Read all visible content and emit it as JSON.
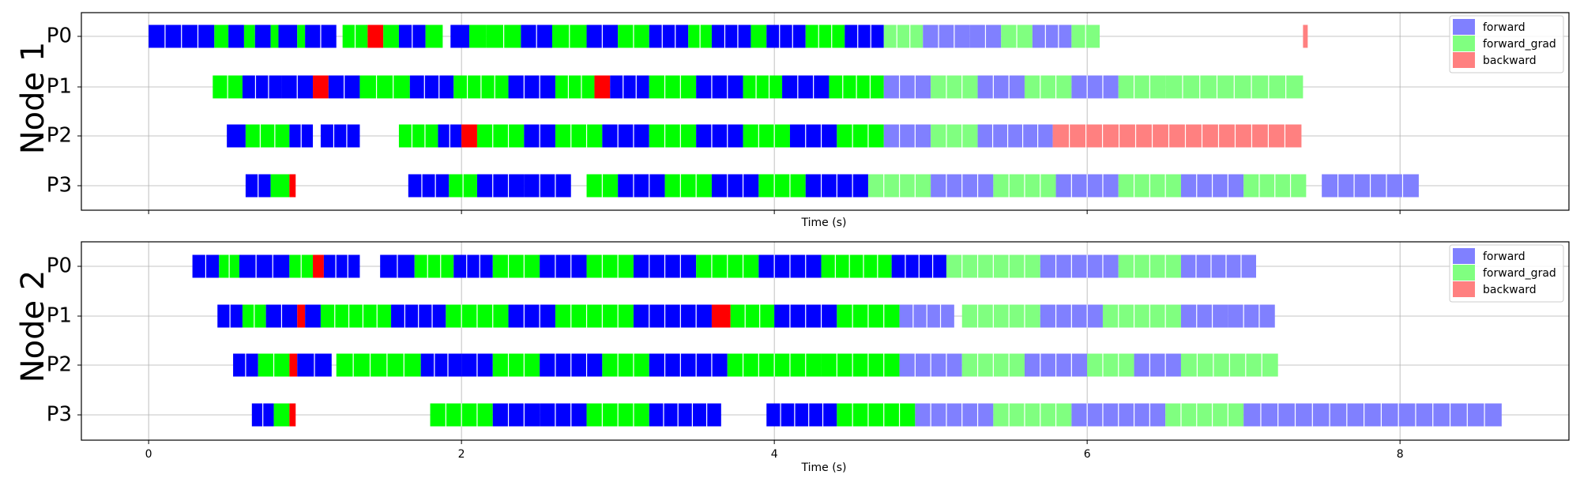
{
  "chart_data": [
    {
      "type": "bar",
      "subtype": "timeline",
      "ylabel": "Node 1",
      "xlabel": "Time (s)",
      "xlim": [
        -0.43,
        9.08
      ],
      "xticks": [
        0,
        2,
        4,
        6,
        8
      ],
      "xticks_labels_shown": false,
      "rows": [
        "P0",
        "P1",
        "P2",
        "P3"
      ],
      "grid": true,
      "legend_position": "top-right",
      "series": [
        {
          "name": "forward",
          "color": "#8080ff"
        },
        {
          "name": "forward_grad",
          "color": "#80ff80"
        },
        {
          "name": "backward",
          "color": "#ff8080"
        }
      ],
      "intervals": [
        [
          "P0",
          0,
          0.42,
          "forward"
        ],
        [
          "P0",
          0.42,
          0.51,
          "forward_grad"
        ],
        [
          "P0",
          0.51,
          0.61,
          "forward"
        ],
        [
          "P0",
          0.61,
          0.68,
          "forward_grad"
        ],
        [
          "P0",
          0.68,
          0.78,
          "forward"
        ],
        [
          "P0",
          0.78,
          0.83,
          "forward_grad"
        ],
        [
          "P0",
          0.83,
          0.95,
          "forward"
        ],
        [
          "P0",
          0.95,
          1.0,
          "forward_grad"
        ],
        [
          "P0",
          1.0,
          1.2,
          "forward"
        ],
        [
          "P0",
          1.24,
          1.4,
          "forward_grad"
        ],
        [
          "P0",
          1.4,
          1.5,
          "backward"
        ],
        [
          "P0",
          1.5,
          1.6,
          "forward_grad"
        ],
        [
          "P0",
          1.6,
          1.77,
          "forward"
        ],
        [
          "P0",
          1.77,
          1.88,
          "forward_grad"
        ],
        [
          "P0",
          1.93,
          2.05,
          "forward"
        ],
        [
          "P0",
          2.05,
          2.16,
          "forward_grad"
        ],
        [
          "P0",
          2.16,
          2.38,
          "forward_grad"
        ],
        [
          "P0",
          2.38,
          2.58,
          "forward"
        ],
        [
          "P0",
          2.58,
          2.8,
          "forward_grad"
        ],
        [
          "P0",
          2.8,
          3.0,
          "forward"
        ],
        [
          "P0",
          3.0,
          3.2,
          "forward_grad"
        ],
        [
          "P0",
          3.2,
          3.45,
          "forward"
        ],
        [
          "P0",
          3.45,
          3.6,
          "forward_grad"
        ],
        [
          "P0",
          3.6,
          3.85,
          "forward"
        ],
        [
          "P0",
          3.85,
          3.95,
          "forward_grad"
        ],
        [
          "P0",
          3.95,
          4.2,
          "forward"
        ],
        [
          "P0",
          4.2,
          4.45,
          "forward_grad"
        ],
        [
          "P0",
          4.45,
          4.7,
          "forward"
        ],
        [
          "P0",
          4.7,
          4.95,
          "forward_grad"
        ],
        [
          "P0",
          4.95,
          5.25,
          "forward"
        ],
        [
          "P0",
          5.25,
          5.45,
          "forward"
        ],
        [
          "P0",
          5.45,
          5.65,
          "forward_grad"
        ],
        [
          "P0",
          5.65,
          5.9,
          "forward"
        ],
        [
          "P0",
          5.9,
          6.08,
          "forward_grad"
        ],
        [
          "P0",
          7.38,
          7.41,
          "backward"
        ],
        [
          "P1",
          0.41,
          0.6,
          "forward_grad"
        ],
        [
          "P1",
          0.6,
          0.85,
          "forward"
        ],
        [
          "P1",
          0.85,
          1.05,
          "forward"
        ],
        [
          "P1",
          1.05,
          1.15,
          "backward"
        ],
        [
          "P1",
          1.15,
          1.35,
          "forward"
        ],
        [
          "P1",
          1.35,
          1.67,
          "forward_grad"
        ],
        [
          "P1",
          1.67,
          1.95,
          "forward"
        ],
        [
          "P1",
          1.95,
          2.3,
          "forward_grad"
        ],
        [
          "P1",
          2.3,
          2.6,
          "forward"
        ],
        [
          "P1",
          2.6,
          2.85,
          "forward_grad"
        ],
        [
          "P1",
          2.85,
          2.95,
          "backward"
        ],
        [
          "P1",
          2.95,
          3.2,
          "forward"
        ],
        [
          "P1",
          3.2,
          3.5,
          "forward_grad"
        ],
        [
          "P1",
          3.5,
          3.8,
          "forward"
        ],
        [
          "P1",
          3.8,
          4.05,
          "forward_grad"
        ],
        [
          "P1",
          4.05,
          4.35,
          "forward"
        ],
        [
          "P1",
          4.35,
          4.7,
          "forward_grad"
        ],
        [
          "P1",
          4.7,
          5.0,
          "forward"
        ],
        [
          "P1",
          5.0,
          5.3,
          "forward_grad"
        ],
        [
          "P1",
          5.3,
          5.6,
          "forward"
        ],
        [
          "P1",
          5.6,
          5.9,
          "forward_grad"
        ],
        [
          "P1",
          5.9,
          6.2,
          "forward"
        ],
        [
          "P1",
          6.2,
          6.5,
          "forward_grad"
        ],
        [
          "P1",
          6.5,
          7.38,
          "forward_grad"
        ],
        [
          "P2",
          0.5,
          0.62,
          "forward"
        ],
        [
          "P2",
          0.62,
          0.9,
          "forward_grad"
        ],
        [
          "P2",
          0.9,
          1.05,
          "forward"
        ],
        [
          "P2",
          1.1,
          1.35,
          "forward"
        ],
        [
          "P2",
          1.6,
          1.85,
          "forward_grad"
        ],
        [
          "P2",
          1.85,
          2.0,
          "forward"
        ],
        [
          "P2",
          2.0,
          2.1,
          "backward"
        ],
        [
          "P2",
          2.1,
          2.4,
          "forward_grad"
        ],
        [
          "P2",
          2.4,
          2.6,
          "forward"
        ],
        [
          "P2",
          2.6,
          2.9,
          "forward_grad"
        ],
        [
          "P2",
          2.9,
          3.2,
          "forward"
        ],
        [
          "P2",
          3.2,
          3.5,
          "forward_grad"
        ],
        [
          "P2",
          3.5,
          3.8,
          "forward"
        ],
        [
          "P2",
          3.8,
          4.1,
          "forward_grad"
        ],
        [
          "P2",
          4.1,
          4.4,
          "forward"
        ],
        [
          "P2",
          4.4,
          4.7,
          "forward_grad"
        ],
        [
          "P2",
          4.7,
          5.0,
          "forward"
        ],
        [
          "P2",
          5.0,
          5.3,
          "forward_grad"
        ],
        [
          "P2",
          5.3,
          5.78,
          "forward"
        ],
        [
          "P2",
          5.78,
          7.37,
          "backward"
        ],
        [
          "P3",
          0.62,
          0.78,
          "forward"
        ],
        [
          "P3",
          0.78,
          0.9,
          "forward_grad"
        ],
        [
          "P3",
          0.9,
          0.94,
          "backward"
        ],
        [
          "P3",
          1.66,
          1.92,
          "forward"
        ],
        [
          "P3",
          1.92,
          2.1,
          "forward_grad"
        ],
        [
          "P3",
          2.1,
          2.4,
          "forward"
        ],
        [
          "P3",
          2.4,
          2.7,
          "forward"
        ],
        [
          "P3",
          2.8,
          3.0,
          "forward_grad"
        ],
        [
          "P3",
          3.0,
          3.3,
          "forward"
        ],
        [
          "P3",
          3.3,
          3.6,
          "forward_grad"
        ],
        [
          "P3",
          3.6,
          3.9,
          "forward"
        ],
        [
          "P3",
          3.9,
          4.2,
          "forward_grad"
        ],
        [
          "P3",
          4.2,
          4.6,
          "forward"
        ],
        [
          "P3",
          4.6,
          5.0,
          "forward_grad"
        ],
        [
          "P3",
          5.0,
          5.4,
          "forward"
        ],
        [
          "P3",
          5.4,
          5.8,
          "forward_grad"
        ],
        [
          "P3",
          5.8,
          6.2,
          "forward"
        ],
        [
          "P3",
          6.2,
          6.6,
          "forward_grad"
        ],
        [
          "P3",
          6.6,
          7.0,
          "forward"
        ],
        [
          "P3",
          7.0,
          7.4,
          "forward_grad"
        ],
        [
          "P3",
          7.5,
          8.12,
          "forward"
        ]
      ]
    },
    {
      "type": "bar",
      "subtype": "timeline",
      "ylabel": "Node 2",
      "xlabel": "Time (s)",
      "xlim": [
        -0.43,
        9.08
      ],
      "xticks": [
        0,
        2,
        4,
        6,
        8
      ],
      "xticks_labels_shown": true,
      "rows": [
        "P0",
        "P1",
        "P2",
        "P3"
      ],
      "grid": true,
      "legend_position": "top-right",
      "series": [
        {
          "name": "forward",
          "color": "#8080ff"
        },
        {
          "name": "forward_grad",
          "color": "#80ff80"
        },
        {
          "name": "backward",
          "color": "#ff8080"
        }
      ],
      "intervals": [
        [
          "P0",
          0.28,
          0.45,
          "forward"
        ],
        [
          "P0",
          0.45,
          0.58,
          "forward_grad"
        ],
        [
          "P0",
          0.58,
          0.9,
          "forward"
        ],
        [
          "P0",
          0.9,
          1.05,
          "forward_grad"
        ],
        [
          "P0",
          1.05,
          1.12,
          "backward"
        ],
        [
          "P0",
          1.12,
          1.35,
          "forward"
        ],
        [
          "P0",
          1.48,
          1.7,
          "forward"
        ],
        [
          "P0",
          1.7,
          1.95,
          "forward_grad"
        ],
        [
          "P0",
          1.95,
          2.2,
          "forward"
        ],
        [
          "P0",
          2.2,
          2.5,
          "forward_grad"
        ],
        [
          "P0",
          2.5,
          2.8,
          "forward"
        ],
        [
          "P0",
          2.8,
          3.1,
          "forward_grad"
        ],
        [
          "P0",
          3.1,
          3.5,
          "forward"
        ],
        [
          "P0",
          3.5,
          3.9,
          "forward_grad"
        ],
        [
          "P0",
          3.9,
          4.3,
          "forward"
        ],
        [
          "P0",
          4.3,
          4.75,
          "forward_grad"
        ],
        [
          "P0",
          4.75,
          5.1,
          "forward"
        ],
        [
          "P0",
          5.1,
          5.7,
          "forward_grad"
        ],
        [
          "P0",
          5.7,
          6.2,
          "forward"
        ],
        [
          "P0",
          6.2,
          6.6,
          "forward_grad"
        ],
        [
          "P0",
          6.6,
          7.08,
          "forward"
        ],
        [
          "P1",
          0.44,
          0.6,
          "forward"
        ],
        [
          "P1",
          0.6,
          0.75,
          "forward_grad"
        ],
        [
          "P1",
          0.75,
          0.95,
          "forward"
        ],
        [
          "P1",
          0.95,
          1.0,
          "backward"
        ],
        [
          "P1",
          1.0,
          1.1,
          "forward"
        ],
        [
          "P1",
          1.1,
          1.55,
          "forward_grad"
        ],
        [
          "P1",
          1.55,
          1.9,
          "forward"
        ],
        [
          "P1",
          1.9,
          2.3,
          "forward_grad"
        ],
        [
          "P1",
          2.3,
          2.6,
          "forward"
        ],
        [
          "P1",
          2.6,
          3.1,
          "forward_grad"
        ],
        [
          "P1",
          3.1,
          3.6,
          "forward"
        ],
        [
          "P1",
          3.6,
          3.72,
          "backward"
        ],
        [
          "P1",
          3.72,
          4.0,
          "forward_grad"
        ],
        [
          "P1",
          4.0,
          4.4,
          "forward"
        ],
        [
          "P1",
          4.4,
          4.8,
          "forward_grad"
        ],
        [
          "P1",
          4.8,
          5.15,
          "forward"
        ],
        [
          "P1",
          5.2,
          5.7,
          "forward_grad"
        ],
        [
          "P1",
          5.7,
          6.1,
          "forward"
        ],
        [
          "P1",
          6.1,
          6.6,
          "forward_grad"
        ],
        [
          "P1",
          6.6,
          6.9,
          "forward"
        ],
        [
          "P1",
          6.9,
          7.2,
          "forward"
        ],
        [
          "P2",
          0.54,
          0.7,
          "forward"
        ],
        [
          "P2",
          0.7,
          0.9,
          "forward_grad"
        ],
        [
          "P2",
          0.9,
          0.95,
          "backward"
        ],
        [
          "P2",
          0.95,
          1.17,
          "forward"
        ],
        [
          "P2",
          1.2,
          1.74,
          "forward_grad"
        ],
        [
          "P2",
          1.74,
          2.0,
          "forward"
        ],
        [
          "P2",
          2.0,
          2.2,
          "forward"
        ],
        [
          "P2",
          2.2,
          2.5,
          "forward_grad"
        ],
        [
          "P2",
          2.5,
          2.9,
          "forward"
        ],
        [
          "P2",
          2.9,
          3.2,
          "forward_grad"
        ],
        [
          "P2",
          3.2,
          3.7,
          "forward"
        ],
        [
          "P2",
          3.7,
          4.3,
          "forward_grad"
        ],
        [
          "P2",
          4.3,
          4.8,
          "forward_grad"
        ],
        [
          "P2",
          4.8,
          5.2,
          "forward"
        ],
        [
          "P2",
          5.2,
          5.6,
          "forward_grad"
        ],
        [
          "P2",
          5.6,
          6.0,
          "forward"
        ],
        [
          "P2",
          6.0,
          6.3,
          "forward_grad"
        ],
        [
          "P2",
          6.3,
          6.6,
          "forward"
        ],
        [
          "P2",
          6.6,
          7.22,
          "forward_grad"
        ],
        [
          "P3",
          0.66,
          0.8,
          "forward"
        ],
        [
          "P3",
          0.8,
          0.9,
          "forward_grad"
        ],
        [
          "P3",
          0.9,
          0.94,
          "backward"
        ],
        [
          "P3",
          1.8,
          2.2,
          "forward_grad"
        ],
        [
          "P3",
          2.2,
          2.5,
          "forward"
        ],
        [
          "P3",
          2.5,
          2.8,
          "forward"
        ],
        [
          "P3",
          2.8,
          3.2,
          "forward_grad"
        ],
        [
          "P3",
          3.2,
          3.66,
          "forward"
        ],
        [
          "P3",
          3.95,
          4.4,
          "forward"
        ],
        [
          "P3",
          4.4,
          4.9,
          "forward_grad"
        ],
        [
          "P3",
          4.9,
          5.4,
          "forward"
        ],
        [
          "P3",
          5.4,
          5.9,
          "forward_grad"
        ],
        [
          "P3",
          5.9,
          6.5,
          "forward"
        ],
        [
          "P3",
          6.5,
          7.0,
          "forward_grad"
        ],
        [
          "P3",
          7.0,
          8.65,
          "forward"
        ]
      ]
    }
  ]
}
